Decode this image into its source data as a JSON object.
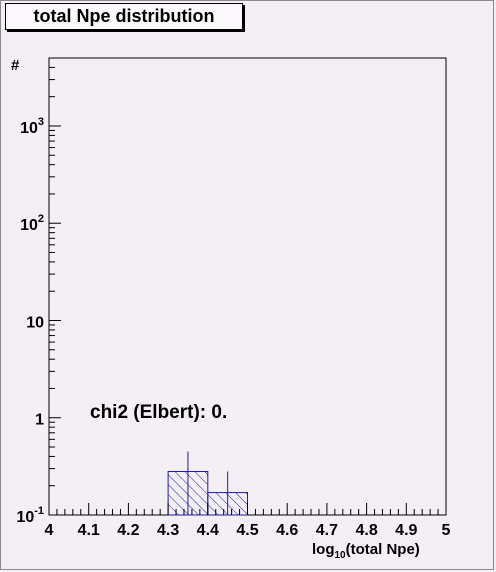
{
  "chart_data": {
    "type": "bar",
    "histogram": true,
    "title": "total Npe distribution",
    "ylabel": "#",
    "xlabel": "log",
    "xlabel_sub": "10",
    "xlabel_rest": "(total Npe)",
    "annotation": "chi2 (Elbert): 0.",
    "xlim": [
      4,
      5
    ],
    "ylim": [
      0.1,
      5000
    ],
    "y_scale": "log",
    "x_ticks": [
      "4",
      "4.1",
      "4.2",
      "4.3",
      "4.4",
      "4.5",
      "4.6",
      "4.7",
      "4.8",
      "4.9",
      "5"
    ],
    "y_ticks": [
      {
        "value": 0.1,
        "base": "10",
        "exp": "-1"
      },
      {
        "value": 1,
        "base": "1",
        "exp": ""
      },
      {
        "value": 10,
        "base": "10",
        "exp": ""
      },
      {
        "value": 100,
        "base": "10",
        "exp": "2"
      },
      {
        "value": 1000,
        "base": "10",
        "exp": "3"
      }
    ],
    "bins": [
      {
        "x0": 4.3,
        "x1": 4.4,
        "value": 0.28,
        "err_high": 0.45
      },
      {
        "x0": 4.4,
        "x1": 4.5,
        "value": 0.17,
        "err_high": 0.28
      }
    ],
    "colors": {
      "bar": "#1c1ca8",
      "axis": "#000000",
      "frame": "#f4eff4"
    },
    "grid": false
  }
}
